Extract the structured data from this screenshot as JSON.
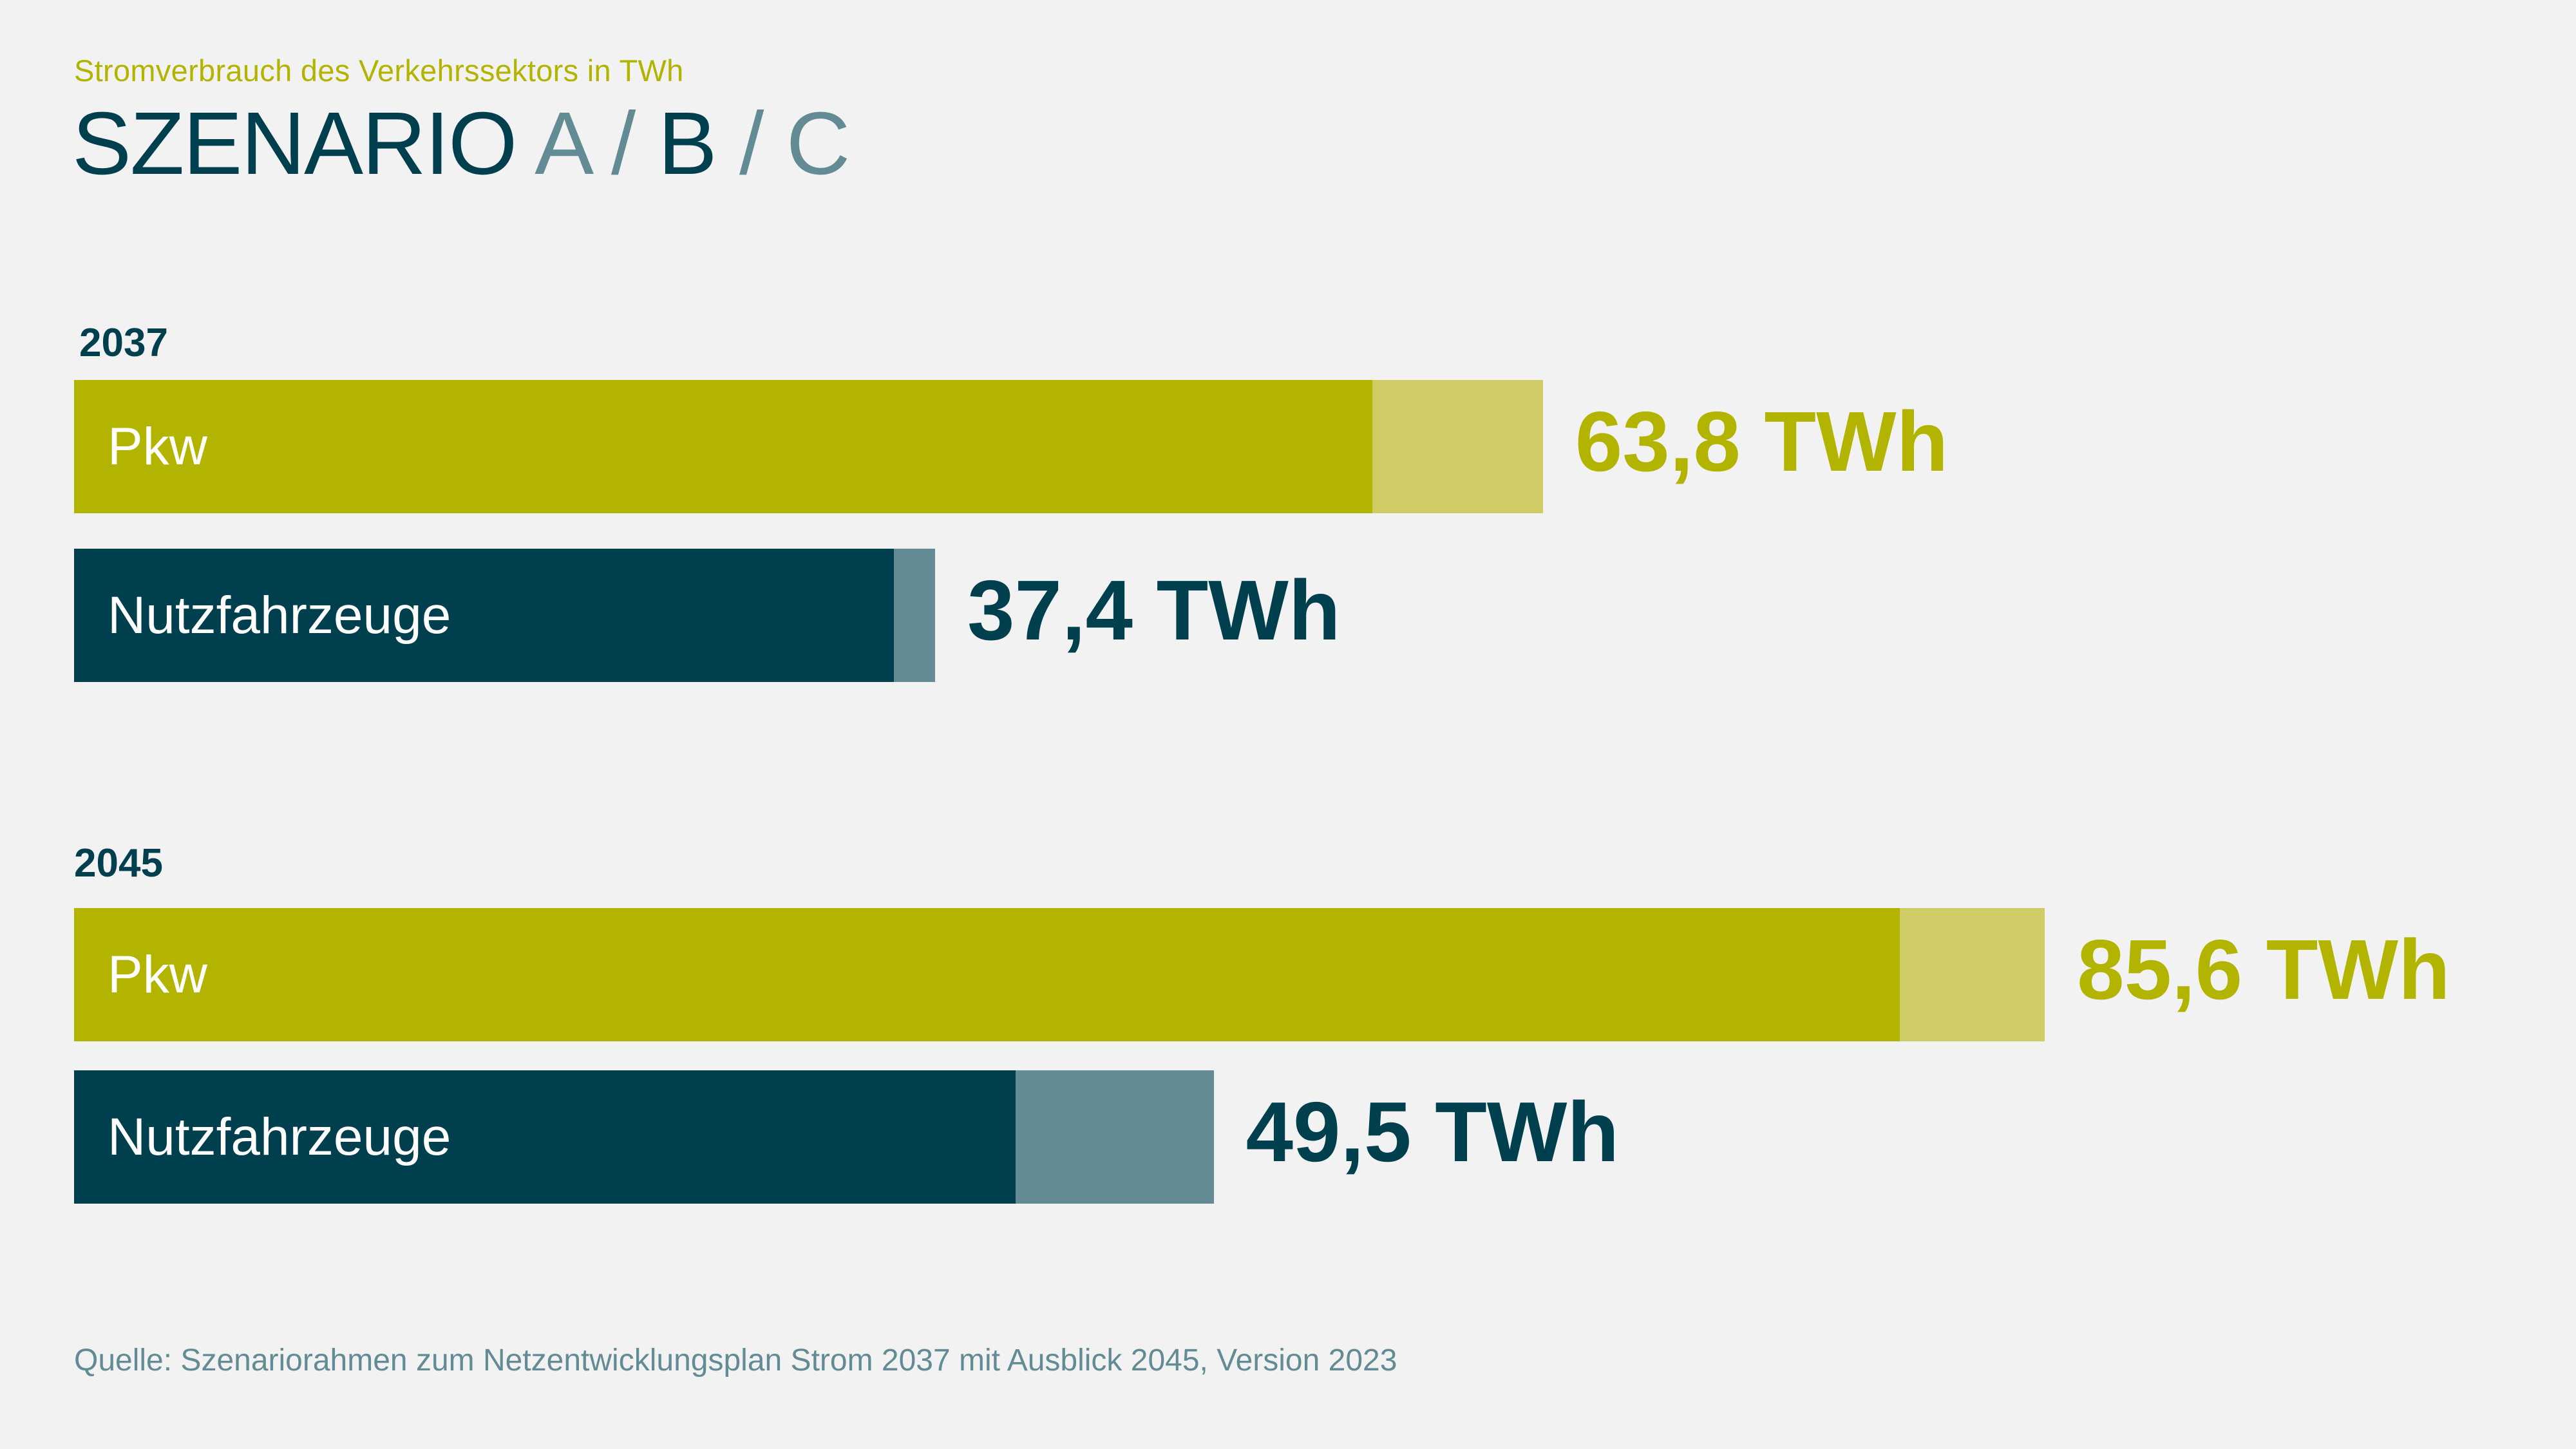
{
  "header": {
    "subtitle": "Stromverbrauch des Verkehrssektors in TWh",
    "title_word": "SZENARIO",
    "scenario_a": "A",
    "scenario_b": "B",
    "scenario_c": "C",
    "separator": "/"
  },
  "colors": {
    "pkw_main": "#b2b400",
    "pkw_light": "#cfcc66",
    "nfz_main": "#003f4d",
    "nfz_light": "#628b93",
    "value_pkw": "#b2b400",
    "value_nfz": "#003f4d"
  },
  "chart_data": {
    "type": "bar",
    "orientation": "horizontal",
    "stacked": true,
    "unit": "TWh",
    "groups": [
      {
        "year": "2037",
        "bars": [
          {
            "category": "Pkw",
            "total": 63.8,
            "main": 56.4,
            "extra": 7.4,
            "label": "63,8 TWh",
            "style": "pkw"
          },
          {
            "category": "Nutzfahrzeuge",
            "total": 37.4,
            "main": 35.6,
            "extra": 1.8,
            "label": "37,4 TWh",
            "style": "nfz"
          }
        ]
      },
      {
        "year": "2045",
        "bars": [
          {
            "category": "Pkw",
            "total": 85.6,
            "main": 79.3,
            "extra": 6.3,
            "label": "85,6 TWh",
            "style": "pkw"
          },
          {
            "category": "Nutzfahrzeuge",
            "total": 49.5,
            "main": 40.9,
            "extra": 8.6,
            "label": "49,5 TWh",
            "style": "nfz"
          }
        ]
      }
    ]
  },
  "footer": {
    "source": "Quelle: Szenariorahmen zum Netzentwicklungsplan Strom 2037 mit Ausblick 2045, Version 2023"
  }
}
